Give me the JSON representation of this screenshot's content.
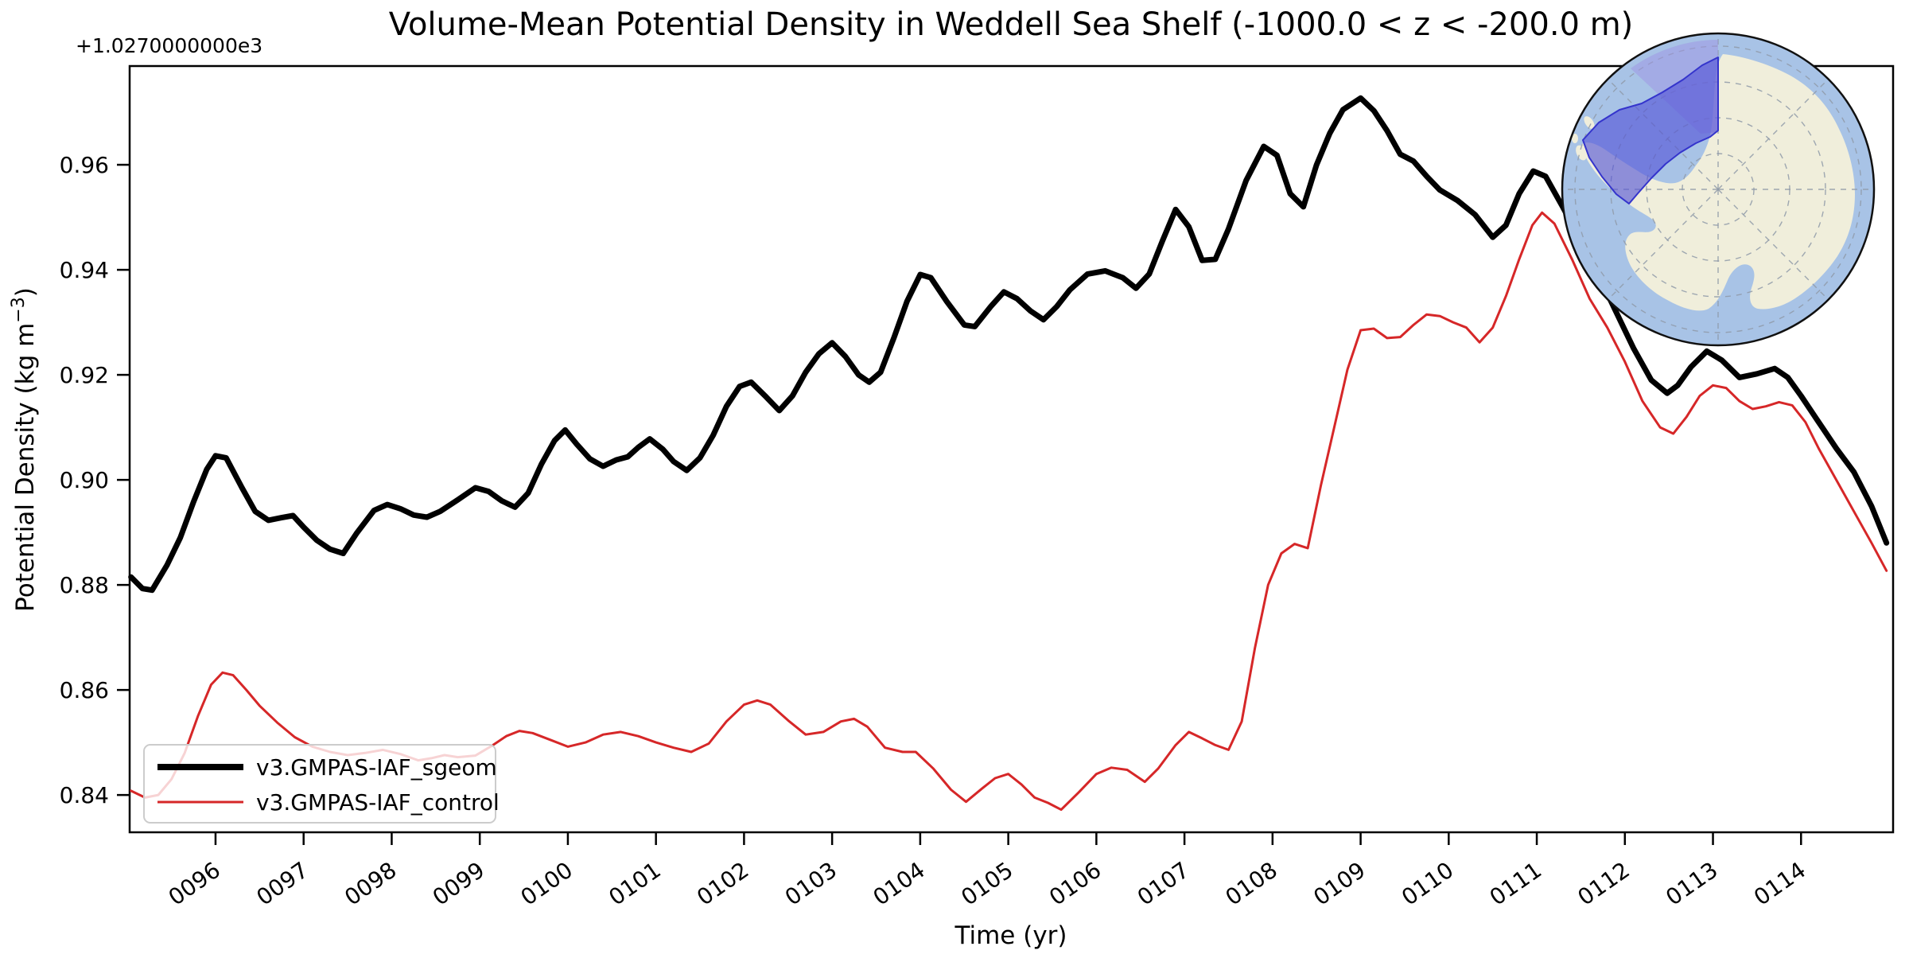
{
  "chart_data": {
    "type": "line",
    "title": "Volume-Mean Potential Density in Weddell Sea Shelf (-1000.0 < z < -200.0 m)",
    "xlabel": "Time (yr)",
    "ylabel_main": "Potential Density (kg m",
    "ylabel_sup": "−3",
    "ylabel_end": ")",
    "y_offset_text": "+1.0270000000e3",
    "xlim": [
      95.025,
      115.045
    ],
    "ylim": [
      0.8329,
      0.9788
    ],
    "grid": false,
    "legend_position": "lower-left",
    "x_ticks": [
      {
        "label": "0096",
        "year": 96
      },
      {
        "label": "0097",
        "year": 97
      },
      {
        "label": "0098",
        "year": 98
      },
      {
        "label": "0099",
        "year": 99
      },
      {
        "label": "0100",
        "year": 100
      },
      {
        "label": "0101",
        "year": 101
      },
      {
        "label": "0102",
        "year": 102
      },
      {
        "label": "0103",
        "year": 103
      },
      {
        "label": "0104",
        "year": 104
      },
      {
        "label": "0105",
        "year": 105
      },
      {
        "label": "0106",
        "year": 106
      },
      {
        "label": "0107",
        "year": 107
      },
      {
        "label": "0108",
        "year": 108
      },
      {
        "label": "0109",
        "year": 109
      },
      {
        "label": "0110",
        "year": 110
      },
      {
        "label": "0111",
        "year": 111
      },
      {
        "label": "0112",
        "year": 112
      },
      {
        "label": "0113",
        "year": 113
      },
      {
        "label": "0114",
        "year": 114
      }
    ],
    "y_ticks": [
      {
        "label": "0.96",
        "value": 0.96
      },
      {
        "label": "0.94",
        "value": 0.94
      },
      {
        "label": "0.92",
        "value": 0.92
      },
      {
        "label": "0.90",
        "value": 0.9
      },
      {
        "label": "0.88",
        "value": 0.88
      },
      {
        "label": "0.86",
        "value": 0.86
      },
      {
        "label": "0.84",
        "value": 0.84
      }
    ],
    "series": [
      {
        "name": "v3.GMPAS-IAF_sgeom",
        "color": "#000000",
        "width": 7,
        "points": [
          [
            95.04,
            0.8815
          ],
          [
            95.17,
            0.8793
          ],
          [
            95.28,
            0.879
          ],
          [
            95.45,
            0.8838
          ],
          [
            95.6,
            0.889
          ],
          [
            95.75,
            0.8958
          ],
          [
            95.9,
            0.902
          ],
          [
            96.0,
            0.9046
          ],
          [
            96.12,
            0.9042
          ],
          [
            96.3,
            0.8985
          ],
          [
            96.45,
            0.894
          ],
          [
            96.6,
            0.8923
          ],
          [
            96.75,
            0.8928
          ],
          [
            96.88,
            0.8932
          ],
          [
            97.0,
            0.891
          ],
          [
            97.15,
            0.8885
          ],
          [
            97.3,
            0.8868
          ],
          [
            97.45,
            0.886
          ],
          [
            97.6,
            0.8898
          ],
          [
            97.8,
            0.8942
          ],
          [
            97.95,
            0.8953
          ],
          [
            98.1,
            0.8945
          ],
          [
            98.25,
            0.8933
          ],
          [
            98.4,
            0.8929
          ],
          [
            98.55,
            0.894
          ],
          [
            98.75,
            0.8962
          ],
          [
            98.95,
            0.8985
          ],
          [
            99.1,
            0.8978
          ],
          [
            99.25,
            0.896
          ],
          [
            99.4,
            0.8948
          ],
          [
            99.55,
            0.8975
          ],
          [
            99.7,
            0.903
          ],
          [
            99.85,
            0.9075
          ],
          [
            99.97,
            0.9095
          ],
          [
            100.1,
            0.9068
          ],
          [
            100.25,
            0.904
          ],
          [
            100.4,
            0.9026
          ],
          [
            100.55,
            0.9038
          ],
          [
            100.68,
            0.9044
          ],
          [
            100.8,
            0.9062
          ],
          [
            100.93,
            0.9078
          ],
          [
            101.08,
            0.9058
          ],
          [
            101.2,
            0.9035
          ],
          [
            101.35,
            0.9018
          ],
          [
            101.5,
            0.9042
          ],
          [
            101.65,
            0.9085
          ],
          [
            101.8,
            0.914
          ],
          [
            101.95,
            0.9178
          ],
          [
            102.08,
            0.9186
          ],
          [
            102.25,
            0.9158
          ],
          [
            102.4,
            0.9132
          ],
          [
            102.55,
            0.916
          ],
          [
            102.7,
            0.9205
          ],
          [
            102.85,
            0.924
          ],
          [
            103.0,
            0.9261
          ],
          [
            103.15,
            0.9235
          ],
          [
            103.3,
            0.92
          ],
          [
            103.42,
            0.9186
          ],
          [
            103.55,
            0.9205
          ],
          [
            103.7,
            0.927
          ],
          [
            103.85,
            0.934
          ],
          [
            104.0,
            0.9391
          ],
          [
            104.12,
            0.9385
          ],
          [
            104.3,
            0.934
          ],
          [
            104.5,
            0.9295
          ],
          [
            104.62,
            0.9292
          ],
          [
            104.8,
            0.933
          ],
          [
            104.95,
            0.9358
          ],
          [
            105.1,
            0.9345
          ],
          [
            105.25,
            0.9322
          ],
          [
            105.4,
            0.9305
          ],
          [
            105.55,
            0.933
          ],
          [
            105.7,
            0.9362
          ],
          [
            105.9,
            0.9392
          ],
          [
            106.1,
            0.9398
          ],
          [
            106.3,
            0.9385
          ],
          [
            106.45,
            0.9365
          ],
          [
            106.6,
            0.9392
          ],
          [
            106.75,
            0.9455
          ],
          [
            106.9,
            0.9515
          ],
          [
            107.05,
            0.9482
          ],
          [
            107.2,
            0.9418
          ],
          [
            107.35,
            0.942
          ],
          [
            107.5,
            0.9478
          ],
          [
            107.7,
            0.957
          ],
          [
            107.9,
            0.9635
          ],
          [
            108.05,
            0.9618
          ],
          [
            108.2,
            0.9545
          ],
          [
            108.35,
            0.952
          ],
          [
            108.5,
            0.96
          ],
          [
            108.65,
            0.966
          ],
          [
            108.8,
            0.9705
          ],
          [
            109.0,
            0.9727
          ],
          [
            109.15,
            0.9703
          ],
          [
            109.3,
            0.9665
          ],
          [
            109.45,
            0.962
          ],
          [
            109.6,
            0.9607
          ],
          [
            109.75,
            0.9578
          ],
          [
            109.9,
            0.9552
          ],
          [
            110.1,
            0.9532
          ],
          [
            110.3,
            0.9505
          ],
          [
            110.5,
            0.9462
          ],
          [
            110.65,
            0.9485
          ],
          [
            110.8,
            0.9545
          ],
          [
            110.96,
            0.9588
          ],
          [
            111.1,
            0.9578
          ],
          [
            111.3,
            0.9518
          ],
          [
            111.5,
            0.9455
          ],
          [
            111.7,
            0.939
          ],
          [
            111.9,
            0.932
          ],
          [
            112.1,
            0.925
          ],
          [
            112.3,
            0.919
          ],
          [
            112.48,
            0.9165
          ],
          [
            112.6,
            0.918
          ],
          [
            112.75,
            0.9215
          ],
          [
            112.93,
            0.9245
          ],
          [
            113.1,
            0.9228
          ],
          [
            113.3,
            0.9195
          ],
          [
            113.5,
            0.9202
          ],
          [
            113.7,
            0.9212
          ],
          [
            113.85,
            0.9195
          ],
          [
            114.0,
            0.916
          ],
          [
            114.2,
            0.911
          ],
          [
            114.4,
            0.906
          ],
          [
            114.6,
            0.9015
          ],
          [
            114.8,
            0.895
          ],
          [
            114.97,
            0.888
          ]
        ]
      },
      {
        "name": "v3.GMPAS-IAF_control",
        "color": "#d62728",
        "width": 3,
        "points": [
          [
            95.04,
            0.8408
          ],
          [
            95.2,
            0.8395
          ],
          [
            95.35,
            0.84
          ],
          [
            95.5,
            0.843
          ],
          [
            95.65,
            0.848
          ],
          [
            95.8,
            0.855
          ],
          [
            95.95,
            0.861
          ],
          [
            96.08,
            0.8633
          ],
          [
            96.2,
            0.8628
          ],
          [
            96.35,
            0.86
          ],
          [
            96.5,
            0.857
          ],
          [
            96.7,
            0.8538
          ],
          [
            96.9,
            0.851
          ],
          [
            97.1,
            0.8492
          ],
          [
            97.3,
            0.8482
          ],
          [
            97.5,
            0.8476
          ],
          [
            97.7,
            0.848
          ],
          [
            97.9,
            0.8486
          ],
          [
            98.1,
            0.8478
          ],
          [
            98.3,
            0.8466
          ],
          [
            98.45,
            0.847
          ],
          [
            98.6,
            0.8476
          ],
          [
            98.75,
            0.8472
          ],
          [
            98.95,
            0.8475
          ],
          [
            99.15,
            0.8495
          ],
          [
            99.3,
            0.8512
          ],
          [
            99.45,
            0.8522
          ],
          [
            99.6,
            0.8518
          ],
          [
            99.8,
            0.8505
          ],
          [
            100.0,
            0.8492
          ],
          [
            100.2,
            0.85
          ],
          [
            100.4,
            0.8515
          ],
          [
            100.6,
            0.852
          ],
          [
            100.8,
            0.8512
          ],
          [
            101.0,
            0.85
          ],
          [
            101.2,
            0.849
          ],
          [
            101.4,
            0.8482
          ],
          [
            101.6,
            0.8498
          ],
          [
            101.8,
            0.854
          ],
          [
            102.0,
            0.8572
          ],
          [
            102.15,
            0.858
          ],
          [
            102.3,
            0.8572
          ],
          [
            102.5,
            0.8542
          ],
          [
            102.7,
            0.8515
          ],
          [
            102.9,
            0.852
          ],
          [
            103.1,
            0.854
          ],
          [
            103.25,
            0.8545
          ],
          [
            103.4,
            0.853
          ],
          [
            103.6,
            0.849
          ],
          [
            103.8,
            0.8482
          ],
          [
            103.95,
            0.8482
          ],
          [
            104.15,
            0.845
          ],
          [
            104.35,
            0.841
          ],
          [
            104.52,
            0.8387
          ],
          [
            104.7,
            0.8412
          ],
          [
            104.85,
            0.8432
          ],
          [
            105.0,
            0.844
          ],
          [
            105.15,
            0.842
          ],
          [
            105.3,
            0.8395
          ],
          [
            105.45,
            0.8385
          ],
          [
            105.6,
            0.8372
          ],
          [
            105.8,
            0.8405
          ],
          [
            106.0,
            0.844
          ],
          [
            106.17,
            0.8452
          ],
          [
            106.35,
            0.8448
          ],
          [
            106.55,
            0.8425
          ],
          [
            106.7,
            0.845
          ],
          [
            106.9,
            0.8495
          ],
          [
            107.05,
            0.852
          ],
          [
            107.2,
            0.8508
          ],
          [
            107.35,
            0.8495
          ],
          [
            107.5,
            0.8486
          ],
          [
            107.65,
            0.854
          ],
          [
            107.8,
            0.868
          ],
          [
            107.95,
            0.88
          ],
          [
            108.1,
            0.886
          ],
          [
            108.25,
            0.8878
          ],
          [
            108.4,
            0.887
          ],
          [
            108.55,
            0.899
          ],
          [
            108.7,
            0.91
          ],
          [
            108.85,
            0.921
          ],
          [
            109.0,
            0.9285
          ],
          [
            109.15,
            0.9288
          ],
          [
            109.3,
            0.927
          ],
          [
            109.45,
            0.9272
          ],
          [
            109.6,
            0.9295
          ],
          [
            109.75,
            0.9315
          ],
          [
            109.9,
            0.9312
          ],
          [
            110.05,
            0.93
          ],
          [
            110.2,
            0.929
          ],
          [
            110.35,
            0.9262
          ],
          [
            110.5,
            0.929
          ],
          [
            110.65,
            0.935
          ],
          [
            110.8,
            0.942
          ],
          [
            110.95,
            0.9485
          ],
          [
            111.06,
            0.9509
          ],
          [
            111.2,
            0.9488
          ],
          [
            111.4,
            0.942
          ],
          [
            111.6,
            0.9345
          ],
          [
            111.8,
            0.929
          ],
          [
            112.0,
            0.9225
          ],
          [
            112.2,
            0.915
          ],
          [
            112.4,
            0.91
          ],
          [
            112.55,
            0.9088
          ],
          [
            112.7,
            0.912
          ],
          [
            112.85,
            0.916
          ],
          [
            113.0,
            0.918
          ],
          [
            113.15,
            0.9175
          ],
          [
            113.3,
            0.915
          ],
          [
            113.45,
            0.9135
          ],
          [
            113.6,
            0.914
          ],
          [
            113.75,
            0.9148
          ],
          [
            113.9,
            0.9142
          ],
          [
            114.05,
            0.911
          ],
          [
            114.2,
            0.906
          ],
          [
            114.4,
            0.9
          ],
          [
            114.6,
            0.894
          ],
          [
            114.8,
            0.888
          ],
          [
            114.97,
            0.8827
          ]
        ]
      }
    ]
  },
  "legend": {
    "entries": [
      "v3.GMPAS-IAF_sgeom",
      "v3.GMPAS-IAF_control"
    ]
  },
  "inset_map": {
    "description": "antarctica-polar-stereographic-inset",
    "colors": {
      "ocean": "#a8c3e6",
      "land": "#f0eedb",
      "graticule": "#8f9aa8",
      "region_fill": "rgba(82,82,214,0.62)",
      "region_stroke": "#3434cc",
      "wedge_fill": "rgba(158,148,228,0.50)",
      "border": "#111111"
    }
  },
  "colors": {
    "axes": "#000000",
    "background": "#ffffff",
    "legend_border": "#cccccc"
  }
}
